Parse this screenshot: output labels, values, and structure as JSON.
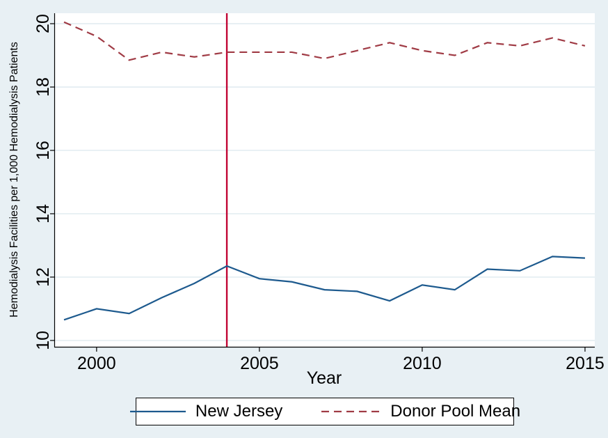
{
  "colors": {
    "background": "#e8f0f4",
    "plot_background": "#ffffff",
    "gridline": "#dfeaef",
    "axis": "#000000",
    "new_jersey_line": "#1d5a8e",
    "donor_pool_line": "#a03b45",
    "event_line": "#c10534"
  },
  "chart_data": {
    "type": "line",
    "title": "",
    "xlabel": "Year",
    "ylabel": "Hemodialysis Facilities per 1,000 Hemodialysis Patients",
    "x": [
      1999,
      2000,
      2001,
      2002,
      2003,
      2004,
      2005,
      2006,
      2007,
      2008,
      2009,
      2010,
      2011,
      2012,
      2013,
      2014,
      2015
    ],
    "series": [
      {
        "name": "New Jersey",
        "style": "solid",
        "color": "#1d5a8e",
        "values": [
          10.65,
          11.0,
          10.85,
          11.35,
          11.8,
          12.35,
          11.95,
          11.85,
          11.6,
          11.55,
          11.25,
          11.75,
          11.6,
          12.25,
          12.2,
          12.65,
          12.6
        ]
      },
      {
        "name": "Donor Pool Mean",
        "style": "dashed",
        "color": "#a03b45",
        "values": [
          20.05,
          19.6,
          18.85,
          19.1,
          18.95,
          19.1,
          19.1,
          19.1,
          18.9,
          19.15,
          19.4,
          19.15,
          19.0,
          19.4,
          19.3,
          19.55,
          19.3
        ]
      }
    ],
    "vline": {
      "x": 2004,
      "color": "#c10534"
    },
    "xticks": [
      2000,
      2005,
      2010,
      2015
    ],
    "yticks": [
      10,
      12,
      14,
      16,
      18,
      20
    ],
    "xlim": [
      1998.7,
      2015.3
    ],
    "ylim": [
      9.8,
      20.33
    ],
    "grid": true,
    "legend_position": "bottom"
  },
  "legend": {
    "entries": [
      "New Jersey",
      "Donor Pool Mean"
    ]
  }
}
